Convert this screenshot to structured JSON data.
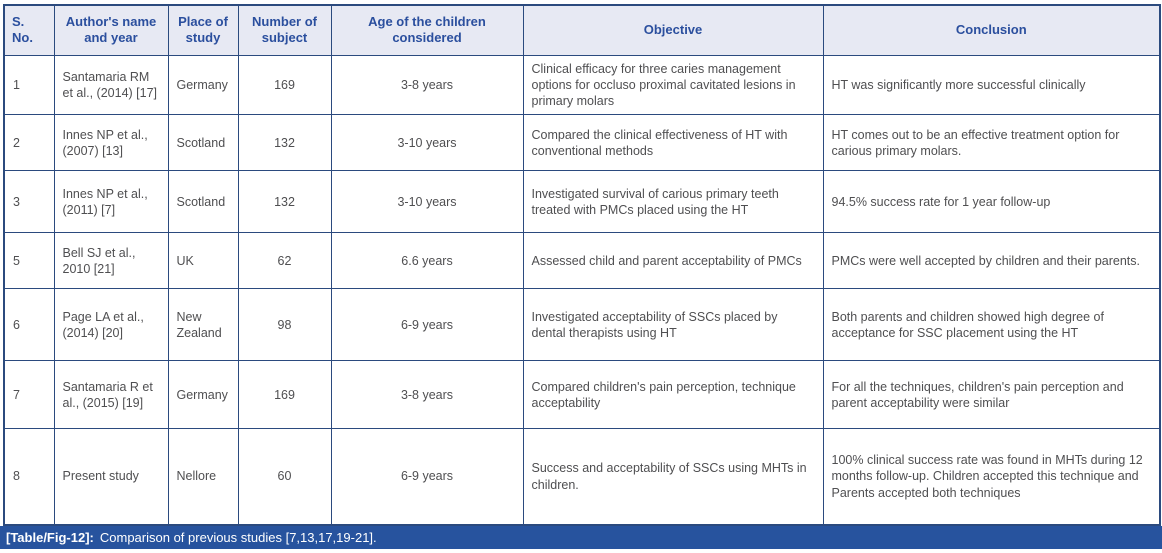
{
  "table": {
    "headers": [
      "S. No.",
      "Author's name and year",
      "Place of study",
      "Number of subject",
      "Age of the children considered",
      "Objective",
      "Conclusion"
    ],
    "rows": [
      {
        "sno": "1",
        "author": "Santamaria RM et al., (2014) [17]",
        "place": "Germany",
        "subjects": "169",
        "age": "3-8 years",
        "objective": "Clinical efficacy for three caries management options for occluso proximal cavitated lesions in primary molars",
        "conclusion": "HT was significantly more successful clinically"
      },
      {
        "sno": "2",
        "author": "Innes NP et al., (2007) [13]",
        "place": "Scotland",
        "subjects": "132",
        "age": "3-10 years",
        "objective": "Compared the clinical effectiveness of HT with conventional methods",
        "conclusion": "HT comes out to be an effective treatment option for carious primary molars."
      },
      {
        "sno": "3",
        "author": "Innes NP et al., (2011) [7]",
        "place": "Scotland",
        "subjects": "132",
        "age": "3-10 years",
        "objective": "Investigated survival of carious primary teeth treated with PMCs placed using the HT",
        "conclusion": "94.5% success rate for 1 year follow-up"
      },
      {
        "sno": "5",
        "author": "Bell SJ et al., 2010 [21]",
        "place": "UK",
        "subjects": "62",
        "age": "6.6 years",
        "objective": "Assessed child and parent acceptability of PMCs",
        "conclusion": "PMCs were well accepted by children and their parents."
      },
      {
        "sno": "6",
        "author": "Page LA et al., (2014) [20]",
        "place": "New Zealand",
        "subjects": "98",
        "age": "6-9 years",
        "objective": "Investigated acceptability of SSCs placed by dental therapists using HT",
        "conclusion": "Both parents and children showed high degree of acceptance for SSC placement using the HT"
      },
      {
        "sno": "7",
        "author": "Santamaria R et al., (2015) [19]",
        "place": "Germany",
        "subjects": "169",
        "age": "3-8 years",
        "objective": "Compared children's pain perception, technique acceptability",
        "conclusion": "For all the techniques, children's pain perception and parent acceptability were similar"
      },
      {
        "sno": "8",
        "author": "Present study",
        "place": "Nellore",
        "subjects": "60",
        "age": "6-9 years",
        "objective": "Success and acceptability of SSCs using MHTs in children.",
        "conclusion": "100% clinical success rate was found in MHTs during 12 months follow-up. Children accepted this technique and Parents accepted both techniques"
      }
    ]
  },
  "caption": {
    "label": "[Table/Fig-12]:",
    "text": "Comparison of previous studies [7,13,17,19-21]."
  },
  "colors": {
    "header_bg": "#e7e9f3",
    "header_text": "#2b4f9e",
    "grid_border": "#2b4a7e",
    "body_text": "#4f4f51",
    "caption_bg": "#27539e",
    "caption_text": "#ffffff"
  }
}
